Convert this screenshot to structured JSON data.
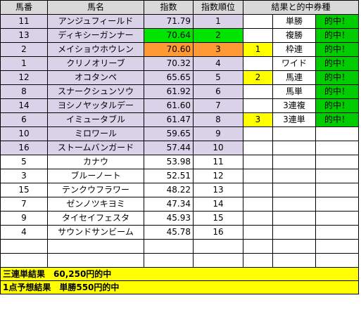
{
  "headers": {
    "num": "馬番",
    "name": "馬名",
    "score": "指数",
    "rank": "指数順位",
    "result": "結果と的中券種"
  },
  "rows": [
    {
      "num": "11",
      "name": "アンジュフィールド",
      "score": "71.79",
      "rank": "1",
      "mark": "",
      "ticket": "単勝",
      "hit": "的中！"
    },
    {
      "num": "13",
      "name": "ディキシーガンナー",
      "score": "70.64",
      "rank": "2",
      "mark": "",
      "ticket": "複勝",
      "hit": "的中！"
    },
    {
      "num": "2",
      "name": "メイショウホウレン",
      "score": "70.60",
      "rank": "3",
      "mark": "1",
      "ticket": "枠連",
      "hit": "的中！"
    },
    {
      "num": "1",
      "name": "クリノオリーブ",
      "score": "70.32",
      "rank": "4",
      "mark": "",
      "ticket": "ワイド",
      "hit": "的中！"
    },
    {
      "num": "12",
      "name": "オコタンペ",
      "score": "65.65",
      "rank": "5",
      "mark": "2",
      "ticket": "馬連",
      "hit": "的中！"
    },
    {
      "num": "8",
      "name": "スナークシュンソウ",
      "score": "61.92",
      "rank": "6",
      "mark": "",
      "ticket": "馬単",
      "hit": "的中！"
    },
    {
      "num": "14",
      "name": "ヨシノヤッタルデー",
      "score": "61.60",
      "rank": "7",
      "mark": "",
      "ticket": "3連複",
      "hit": "的中！"
    },
    {
      "num": "6",
      "name": "イミュータブル",
      "score": "61.47",
      "rank": "8",
      "mark": "3",
      "ticket": "3連単",
      "hit": "的中！"
    },
    {
      "num": "10",
      "name": "ミロワール",
      "score": "59.65",
      "rank": "9",
      "mark": "",
      "ticket": "",
      "hit": ""
    },
    {
      "num": "16",
      "name": "ストームバンガード",
      "score": "57.44",
      "rank": "10",
      "mark": "",
      "ticket": "",
      "hit": ""
    },
    {
      "num": "5",
      "name": "カナウ",
      "score": "53.98",
      "rank": "11",
      "mark": "",
      "ticket": "",
      "hit": ""
    },
    {
      "num": "3",
      "name": "ブルーノート",
      "score": "52.51",
      "rank": "12",
      "mark": "",
      "ticket": "",
      "hit": ""
    },
    {
      "num": "15",
      "name": "テンクウフラワー",
      "score": "48.22",
      "rank": "13",
      "mark": "",
      "ticket": "",
      "hit": ""
    },
    {
      "num": "7",
      "name": "ゼンノツキヨミ",
      "score": "47.34",
      "rank": "14",
      "mark": "",
      "ticket": "",
      "hit": ""
    },
    {
      "num": "9",
      "name": "タイセイフェスタ",
      "score": "45.93",
      "rank": "15",
      "mark": "",
      "ticket": "",
      "hit": ""
    },
    {
      "num": "4",
      "name": "サウンドサンビーム",
      "score": "45.78",
      "rank": "16",
      "mark": "",
      "ticket": "",
      "hit": ""
    }
  ],
  "footer": {
    "line1": "三連単結果　60,250円的中",
    "line2": "1点予想結果　単勝550円的中"
  },
  "colors": {
    "header": "#d9d9d9",
    "top_rows": "#d9d2e9",
    "hit": "#00cc00",
    "rank2": "#00e400",
    "rank3": "#ff9933",
    "mark": "#ffff00"
  }
}
